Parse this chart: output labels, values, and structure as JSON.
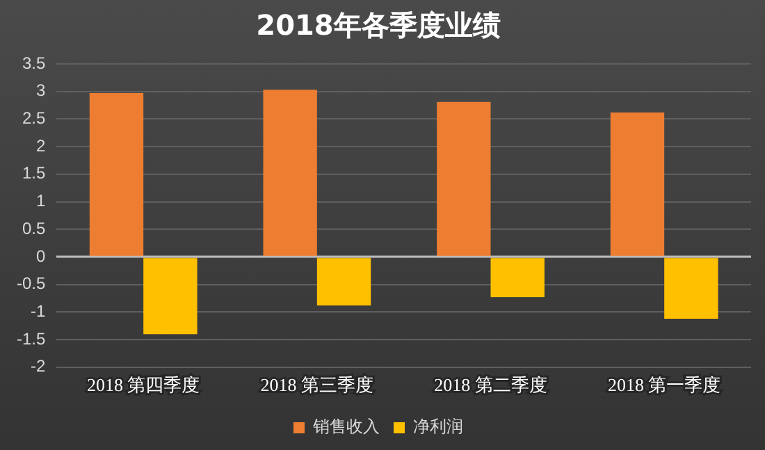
{
  "chart_data": {
    "type": "bar",
    "title": "2018年各季度业绩",
    "categories": [
      "2018 第四季度",
      "2018 第三季度",
      "2018 第二季度",
      "2018 第一季度"
    ],
    "series": [
      {
        "name": "销售收入",
        "color": "#ed7d31",
        "values": [
          2.97,
          3.03,
          2.81,
          2.62
        ]
      },
      {
        "name": "净利润",
        "color": "#ffc000",
        "values": [
          -1.4,
          -0.88,
          -0.73,
          -1.12
        ]
      }
    ],
    "ylim": [
      -2,
      3.5
    ],
    "yticks": [
      -2,
      -1.5,
      -1,
      -0.5,
      0,
      0.5,
      1,
      1.5,
      2,
      2.5,
      3,
      3.5
    ],
    "grid": "y",
    "legend": "bottom"
  }
}
